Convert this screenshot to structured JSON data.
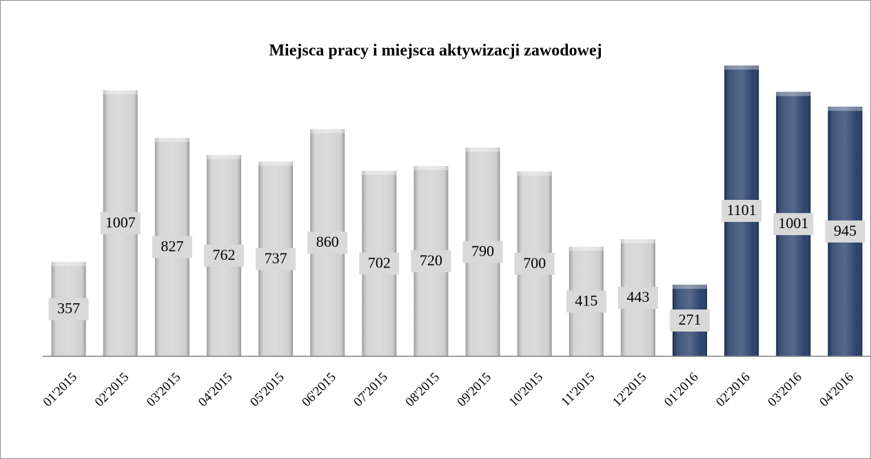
{
  "chart_data": {
    "type": "bar",
    "title": "Miejsca pracy i miejsca aktywizacji zawodowej",
    "categories": [
      "01'2015",
      "02'2015",
      "03'2015",
      "04'2015",
      "05'2015",
      "06'2015",
      "07'2015",
      "08'2015",
      "09'2015",
      "10'2015",
      "11'2015",
      "12'2015",
      "01'2016",
      "02'2016",
      "03'2016",
      "04'2016"
    ],
    "values": [
      357,
      1007,
      827,
      762,
      737,
      860,
      702,
      720,
      790,
      700,
      415,
      443,
      271,
      1101,
      1001,
      945
    ],
    "colors": [
      "#cfcfcf",
      "#cfcfcf",
      "#cfcfcf",
      "#cfcfcf",
      "#cfcfcf",
      "#cfcfcf",
      "#cfcfcf",
      "#cfcfcf",
      "#cfcfcf",
      "#cfcfcf",
      "#cfcfcf",
      "#cfcfcf",
      "#1f3864",
      "#1f3864",
      "#1f3864",
      "#1f3864"
    ]
  }
}
